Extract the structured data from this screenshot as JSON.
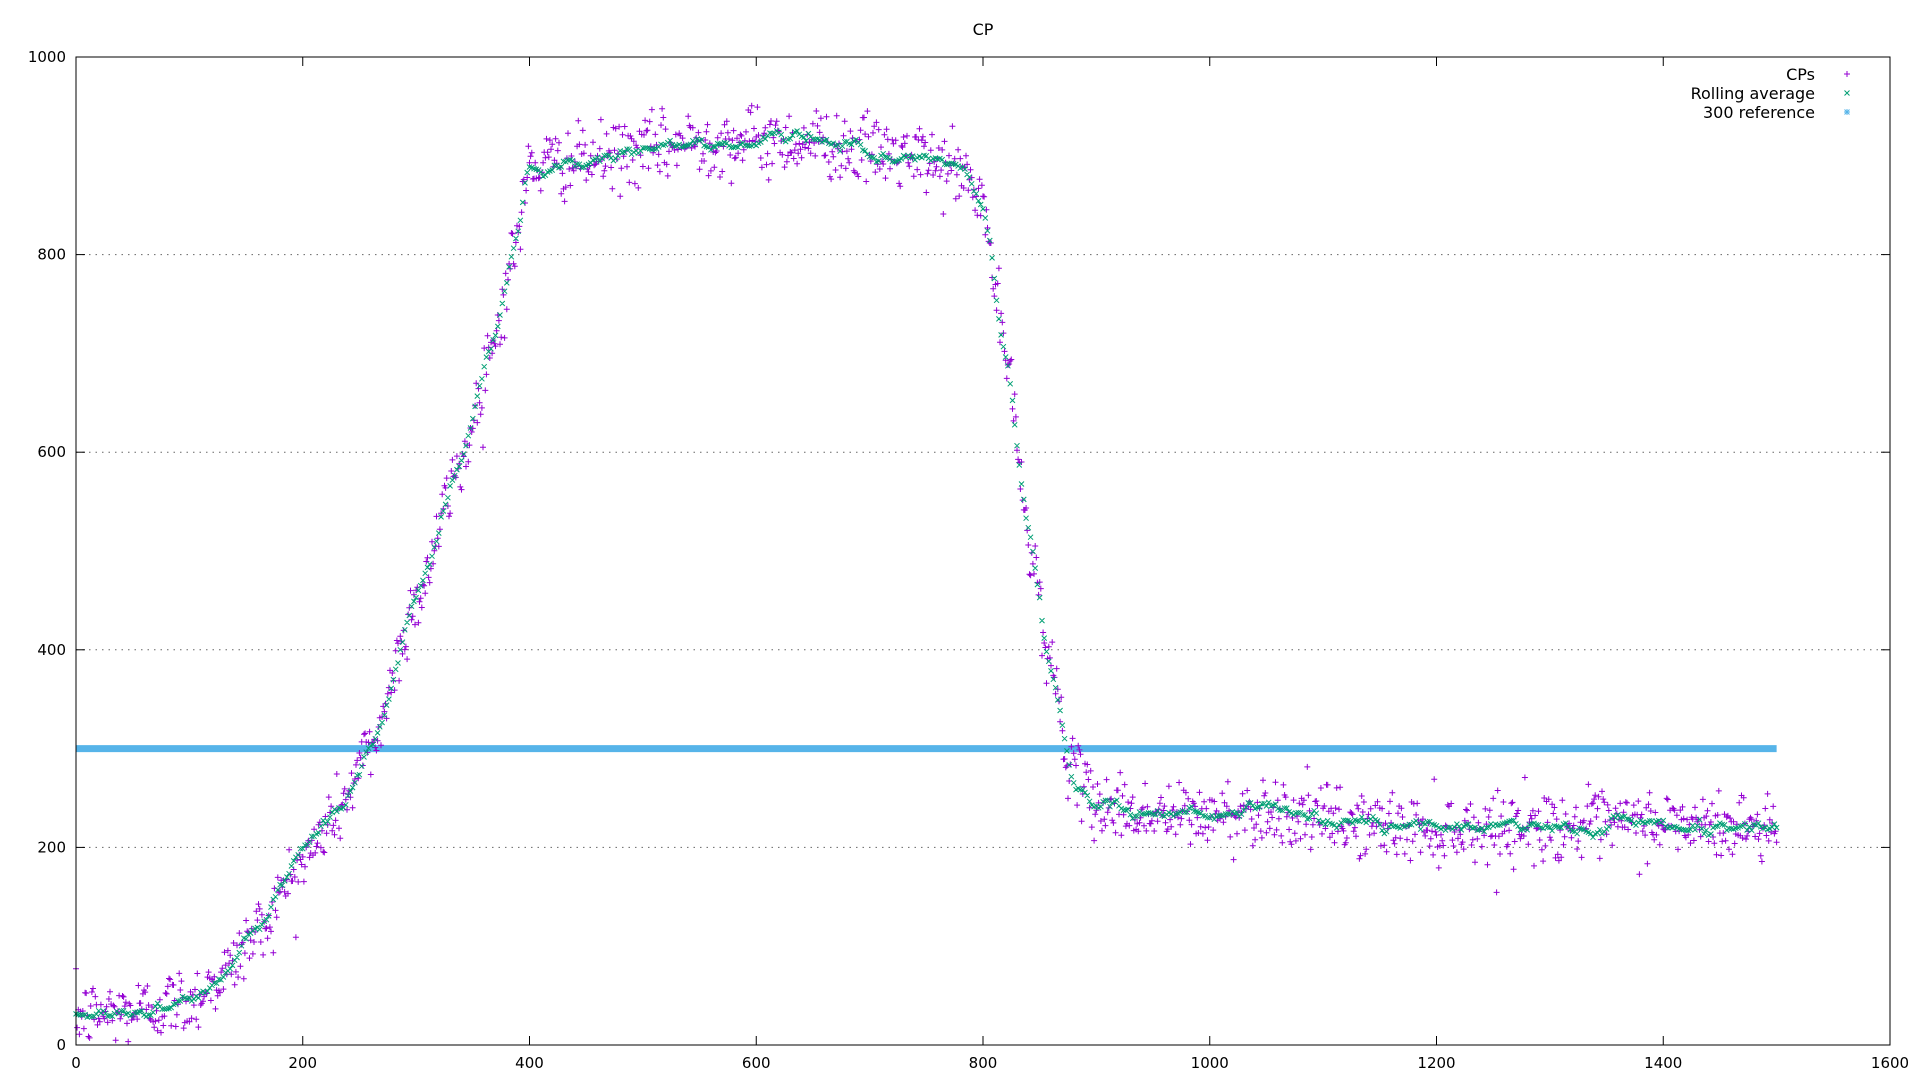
{
  "chart_data": {
    "type": "scatter",
    "title": "CP",
    "xlabel": "",
    "ylabel": "",
    "xlim": [
      0,
      1600
    ],
    "ylim": [
      0,
      1000
    ],
    "xticks": [
      0,
      200,
      400,
      600,
      800,
      1000,
      1200,
      1400,
      1600
    ],
    "yticks": [
      0,
      200,
      400,
      600,
      800,
      1000
    ],
    "grid": {
      "horizontal": true,
      "style": "dotted"
    },
    "legend_position": "top-right",
    "curve_profile": {
      "x": [
        0,
        50,
        100,
        130,
        160,
        200,
        230,
        260,
        300,
        340,
        370,
        390,
        400,
        450,
        500,
        550,
        600,
        650,
        700,
        750,
        780,
        800,
        820,
        840,
        860,
        880,
        900,
        950,
        1000,
        1050,
        1100,
        1150,
        1200,
        1250,
        1300,
        1350,
        1400,
        1450,
        1500
      ],
      "y": [
        30,
        35,
        45,
        70,
        115,
        185,
        235,
        300,
        450,
        590,
        720,
        820,
        890,
        895,
        905,
        915,
        915,
        915,
        905,
        895,
        885,
        850,
        700,
        520,
        380,
        270,
        245,
        232,
        232,
        238,
        228,
        222,
        218,
        220,
        222,
        222,
        225,
        220,
        222
      ]
    },
    "series": [
      {
        "name": "CPs",
        "marker": "+",
        "color": "#9400d3",
        "x_range": [
          0,
          1500
        ],
        "scatter_sd": 17,
        "seed": 12345
      },
      {
        "name": "Rolling average",
        "marker": "x",
        "color": "#009e73",
        "x_range": [
          0,
          1500
        ],
        "scatter_sd": 4,
        "seed": 67890
      },
      {
        "name": "300 reference",
        "marker": "*",
        "color": "#56b4e9",
        "x": [
          0,
          1500
        ],
        "values": [
          300,
          300
        ]
      }
    ]
  }
}
